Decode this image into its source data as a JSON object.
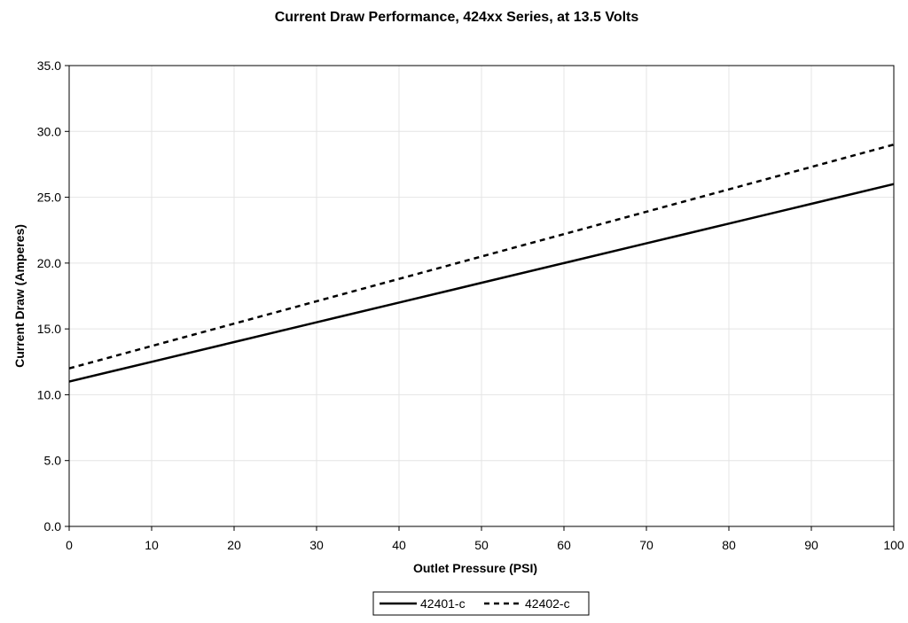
{
  "chart_data": {
    "type": "line",
    "title": "Current Draw Performance, 424xx  Series, at 13.5 Volts",
    "xlabel": "Outlet Pressure (PSI)",
    "ylabel": "Current Draw (Amperes)",
    "xlim": [
      0,
      100
    ],
    "ylim": [
      0,
      35
    ],
    "x_ticks": [
      "0",
      "10",
      "20",
      "30",
      "40",
      "50",
      "60",
      "70",
      "80",
      "90",
      "100"
    ],
    "y_ticks": [
      "0.0",
      "5.0",
      "10.0",
      "15.0",
      "20.0",
      "25.0",
      "30.0",
      "35.0"
    ],
    "grid": true,
    "legend_position": "bottom",
    "series": [
      {
        "name": "42401-c",
        "line_style": "solid",
        "color": "#000000",
        "x": [
          0,
          10,
          20,
          30,
          40,
          50,
          60,
          70,
          80,
          90,
          100
        ],
        "values": [
          11.0,
          12.5,
          14.0,
          15.5,
          17.0,
          18.5,
          20.0,
          21.5,
          23.0,
          24.5,
          26.0
        ]
      },
      {
        "name": "42402-c",
        "line_style": "dashed",
        "color": "#000000",
        "x": [
          0,
          10,
          20,
          30,
          40,
          50,
          60,
          70,
          80,
          90,
          100
        ],
        "values": [
          12.0,
          13.7,
          15.4,
          17.1,
          18.8,
          20.5,
          22.2,
          23.9,
          25.6,
          27.3,
          29.0
        ]
      }
    ]
  }
}
